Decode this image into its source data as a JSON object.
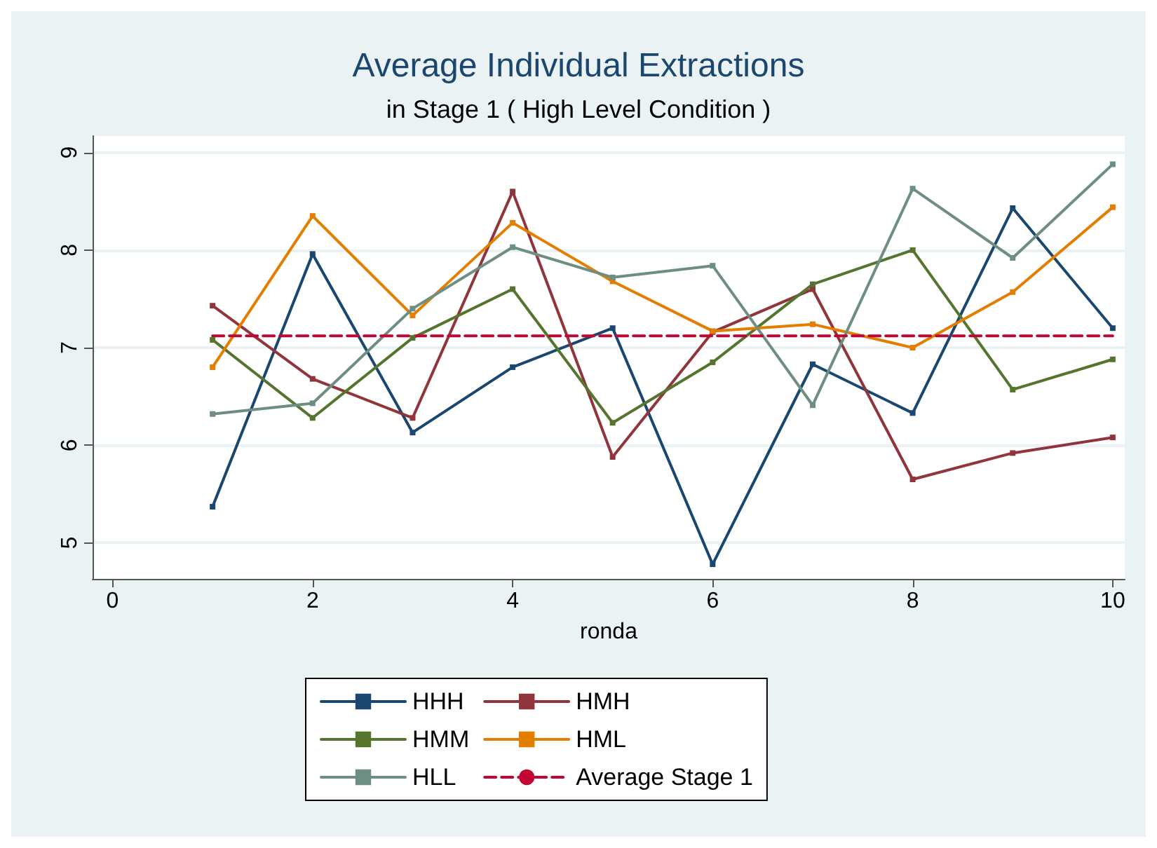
{
  "chart_data": {
    "type": "line",
    "title": "Average Individual Extractions",
    "subtitle": "in Stage 1 ( High Level Condition )",
    "xlabel": "ronda",
    "x": [
      1,
      2,
      3,
      4,
      5,
      6,
      7,
      8,
      9,
      10
    ],
    "series": [
      {
        "name": "HHH",
        "color": "#1a476f",
        "values": [
          5.37,
          7.96,
          6.13,
          6.8,
          7.2,
          4.78,
          6.83,
          6.33,
          8.43,
          7.2
        ]
      },
      {
        "name": "HMH",
        "color": "#90353b",
        "values": [
          7.43,
          6.68,
          6.28,
          8.6,
          5.88,
          7.16,
          7.6,
          5.65,
          5.92,
          6.08
        ]
      },
      {
        "name": "HMM",
        "color": "#55752f",
        "values": [
          7.08,
          6.28,
          7.1,
          7.6,
          6.23,
          6.85,
          7.65,
          8.0,
          6.57,
          6.88
        ]
      },
      {
        "name": "HML",
        "color": "#e37e00",
        "values": [
          6.8,
          8.35,
          7.33,
          8.28,
          7.68,
          7.17,
          7.24,
          7.0,
          7.57,
          8.44
        ]
      },
      {
        "name": "HLL",
        "color": "#6e8e84",
        "values": [
          6.32,
          6.43,
          7.4,
          8.03,
          7.72,
          7.84,
          6.41,
          8.63,
          7.92,
          8.88
        ]
      },
      {
        "name": "Average Stage 1",
        "color": "#c10534",
        "x": [
          1,
          10
        ],
        "values": [
          7.12,
          7.12
        ],
        "line_style": "dashed",
        "marker": "none"
      }
    ],
    "xlim": [
      -0.2,
      10.12
    ],
    "xticks": [
      0,
      2,
      4,
      6,
      8,
      10
    ],
    "ylim": [
      4.63,
      9.17
    ],
    "yticks": [
      5,
      6,
      7,
      8,
      9
    ],
    "grid": "y",
    "legend": "bottom",
    "marker": "square",
    "line_style": "solid"
  }
}
